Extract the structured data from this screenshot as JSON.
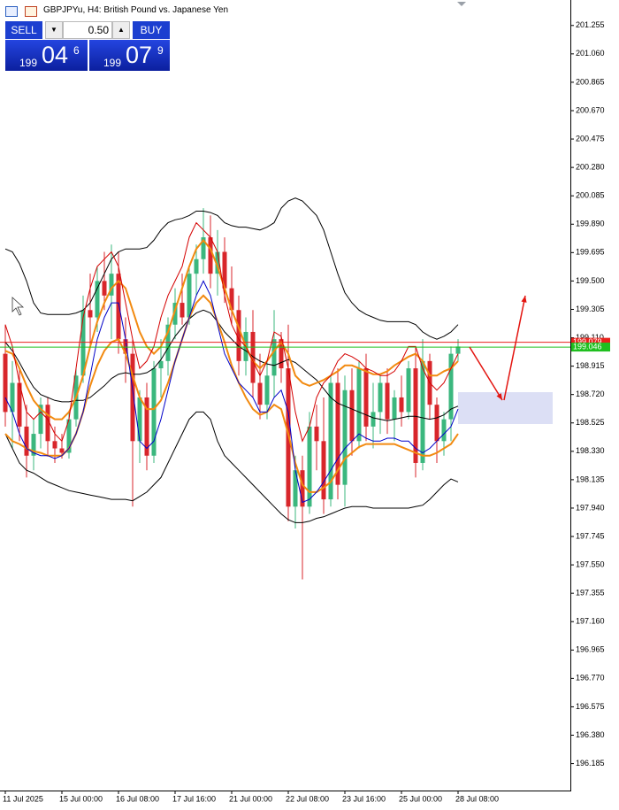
{
  "chart_data": {
    "type": "candlestick",
    "title": "GBPJPYu, H4: British Pound vs. Japanese Yen",
    "categories": [
      "11 Jul 2025",
      null,
      null,
      null,
      null,
      null,
      null,
      null,
      "15 Jul 00:00",
      null,
      null,
      null,
      null,
      null,
      null,
      null,
      "16 Jul 08:00",
      null,
      null,
      null,
      null,
      null,
      null,
      null,
      "17 Jul 16:00",
      null,
      null,
      null,
      null,
      null,
      null,
      null,
      "21 Jul 00:00",
      null,
      null,
      null,
      null,
      null,
      null,
      null,
      "22 Jul 08:00",
      null,
      null,
      null,
      null,
      null,
      null,
      null,
      "23 Jul 16:00",
      null,
      null,
      null,
      null,
      null,
      null,
      null,
      "25 Jul 00:00",
      null,
      null,
      null,
      null,
      null,
      null,
      null,
      "28 Jul 08:00"
    ],
    "open": [
      199.0,
      198.6,
      198.8,
      198.5,
      198.3,
      198.45,
      198.65,
      198.4,
      198.35,
      198.32,
      198.55,
      198.85,
      199.3,
      199.25,
      199.5,
      199.4,
      199.55,
      199.1,
      199.0,
      198.4,
      198.7,
      198.3,
      198.9,
      198.95,
      199.2,
      199.35,
      199.25,
      199.55,
      199.65,
      199.8,
      199.55,
      199.7,
      199.45,
      199.3,
      198.95,
      199.15,
      198.8,
      198.65,
      198.85,
      199.1,
      198.9,
      197.95,
      198.2,
      197.95,
      198.5,
      198.4,
      198.0,
      198.8,
      198.1,
      198.75,
      198.4,
      198.9,
      198.5,
      198.6,
      198.8,
      198.55,
      198.7,
      198.6,
      198.9,
      198.25,
      198.95,
      198.65,
      198.4,
      198.55,
      199.0
    ],
    "high": [
      199.2,
      198.95,
      198.9,
      198.65,
      198.55,
      198.7,
      198.7,
      198.5,
      198.45,
      198.6,
      198.9,
      199.4,
      199.55,
      199.6,
      199.7,
      199.75,
      199.7,
      199.25,
      199.1,
      198.75,
      198.8,
      198.95,
      199.1,
      199.25,
      199.45,
      199.55,
      199.6,
      199.75,
      200.0,
      199.95,
      199.85,
      199.8,
      199.6,
      199.4,
      199.25,
      199.3,
      199.0,
      198.95,
      199.3,
      199.15,
      199.2,
      198.3,
      198.3,
      198.6,
      198.65,
      198.7,
      198.85,
      198.9,
      198.85,
      198.9,
      198.95,
      199.0,
      198.8,
      198.85,
      198.9,
      198.75,
      198.85,
      198.95,
      199.05,
      199.1,
      199.0,
      198.7,
      198.6,
      199.05,
      199.1
    ],
    "low": [
      198.5,
      198.35,
      198.4,
      198.15,
      198.2,
      198.35,
      198.3,
      198.25,
      198.28,
      198.28,
      198.5,
      198.8,
      199.05,
      199.15,
      199.3,
      199.1,
      199.0,
      198.8,
      197.95,
      198.25,
      198.2,
      198.25,
      198.7,
      198.85,
      199.1,
      199.2,
      199.2,
      199.4,
      199.55,
      199.45,
      199.4,
      199.35,
      199.2,
      198.85,
      198.85,
      198.7,
      198.55,
      198.55,
      198.7,
      198.8,
      197.85,
      197.8,
      197.45,
      197.9,
      198.2,
      197.9,
      197.95,
      198.0,
      197.95,
      198.3,
      198.35,
      198.4,
      198.35,
      198.45,
      198.45,
      198.4,
      198.5,
      198.55,
      198.15,
      198.2,
      198.55,
      198.25,
      198.3,
      198.4,
      198.95
    ],
    "close": [
      198.6,
      198.8,
      198.5,
      198.3,
      198.45,
      198.65,
      198.4,
      198.35,
      198.32,
      198.55,
      198.85,
      199.3,
      199.25,
      199.5,
      199.4,
      199.55,
      199.1,
      199.0,
      198.4,
      198.7,
      198.3,
      198.9,
      198.95,
      199.2,
      199.35,
      199.25,
      199.55,
      199.65,
      199.8,
      199.55,
      199.7,
      199.45,
      199.3,
      198.95,
      199.15,
      198.8,
      198.65,
      198.85,
      199.1,
      198.9,
      197.95,
      198.2,
      197.95,
      198.5,
      198.4,
      198.0,
      198.8,
      198.1,
      198.75,
      198.4,
      198.9,
      198.5,
      198.6,
      198.8,
      198.55,
      198.7,
      198.6,
      198.9,
      198.25,
      198.95,
      198.65,
      198.4,
      198.55,
      199.0,
      199.05
    ],
    "up_color": "#3bb77e",
    "down_color": "#d8262b",
    "series": [
      {
        "color": "#000000",
        "width": 1,
        "values": [
          199.72,
          199.7,
          199.62,
          199.5,
          199.35,
          199.28,
          199.27,
          199.27,
          199.27,
          199.27,
          199.28,
          199.3,
          199.35,
          199.45,
          199.55,
          199.65,
          199.7,
          199.72,
          199.72,
          199.72,
          199.73,
          199.78,
          199.85,
          199.9,
          199.92,
          199.93,
          199.95,
          199.98,
          199.98,
          199.97,
          199.95,
          199.9,
          199.88,
          199.87,
          199.87,
          199.86,
          199.85,
          199.87,
          199.9,
          200.0,
          200.05,
          200.07,
          200.05,
          200.0,
          199.95,
          199.85,
          199.7,
          199.55,
          199.42,
          199.35,
          199.3,
          199.27,
          199.25,
          199.23,
          199.22,
          199.22,
          199.22,
          199.22,
          199.2,
          199.15,
          199.12,
          199.1,
          199.12,
          199.15,
          199.2
        ]
      },
      {
        "color": "#000000",
        "width": 1,
        "values": [
          199.08,
          199.02,
          198.94,
          198.85,
          198.77,
          198.72,
          198.7,
          198.68,
          198.67,
          198.67,
          198.68,
          198.68,
          198.7,
          198.74,
          198.78,
          198.83,
          198.86,
          198.87,
          198.86,
          198.86,
          198.87,
          198.9,
          198.96,
          199.04,
          199.12,
          199.18,
          199.24,
          199.28,
          199.3,
          199.28,
          199.22,
          199.15,
          199.1,
          199.05,
          199.02,
          198.98,
          198.95,
          198.93,
          198.92,
          198.94,
          198.96,
          198.94,
          198.9,
          198.86,
          198.82,
          198.76,
          198.7,
          198.66,
          198.64,
          198.62,
          198.6,
          198.58,
          198.56,
          198.55,
          198.54,
          198.55,
          198.56,
          198.57,
          198.57,
          198.56,
          198.55,
          198.56,
          198.58,
          198.62,
          198.64
        ]
      },
      {
        "color": "#000000",
        "width": 1,
        "values": [
          198.45,
          198.35,
          198.25,
          198.2,
          198.18,
          198.15,
          198.12,
          198.1,
          198.08,
          198.06,
          198.05,
          198.04,
          198.03,
          198.02,
          198.01,
          198.0,
          198.0,
          198.0,
          197.99,
          198.02,
          198.05,
          198.1,
          198.15,
          198.25,
          198.35,
          198.45,
          198.55,
          198.6,
          198.6,
          198.55,
          198.4,
          198.3,
          198.25,
          198.2,
          198.15,
          198.1,
          198.05,
          198.0,
          197.95,
          197.9,
          197.86,
          197.84,
          197.84,
          197.85,
          197.87,
          197.88,
          197.9,
          197.92,
          197.94,
          197.95,
          197.95,
          197.95,
          197.94,
          197.94,
          197.94,
          197.94,
          197.94,
          197.94,
          197.95,
          197.96,
          198.0,
          198.05,
          198.1,
          198.14,
          198.12
        ]
      },
      {
        "color": "#f28a10",
        "width": 2,
        "values": [
          199.02,
          199.0,
          198.9,
          198.78,
          198.68,
          198.62,
          198.58,
          198.55,
          198.55,
          198.6,
          198.7,
          198.85,
          199.05,
          199.22,
          199.35,
          199.45,
          199.5,
          199.45,
          199.3,
          199.15,
          199.05,
          199.0,
          199.05,
          199.15,
          199.3,
          199.45,
          199.6,
          199.72,
          199.78,
          199.72,
          199.6,
          199.45,
          199.3,
          199.18,
          199.05,
          198.95,
          198.9,
          198.95,
          199.02,
          199.08,
          199.0,
          198.85,
          198.8,
          198.78,
          198.8,
          198.82,
          198.85,
          198.88,
          198.92,
          198.92,
          198.9,
          198.88,
          198.86,
          198.86,
          198.88,
          198.92,
          198.95,
          198.98,
          199.0,
          198.95,
          198.85,
          198.85,
          198.88,
          198.9,
          198.95
        ]
      },
      {
        "color": "#f28a10",
        "width": 2,
        "values": [
          198.45,
          198.4,
          198.38,
          198.35,
          198.33,
          198.32,
          198.3,
          198.3,
          198.3,
          198.35,
          198.45,
          198.6,
          198.78,
          198.92,
          199.02,
          199.08,
          199.1,
          199.0,
          198.85,
          198.7,
          198.62,
          198.62,
          198.68,
          198.8,
          198.95,
          199.1,
          199.25,
          199.35,
          199.4,
          199.35,
          199.22,
          199.08,
          198.92,
          198.8,
          198.7,
          198.62,
          198.58,
          198.6,
          198.65,
          198.62,
          198.45,
          198.25,
          198.1,
          198.05,
          198.05,
          198.08,
          198.12,
          198.2,
          198.28,
          198.32,
          198.36,
          198.38,
          198.38,
          198.38,
          198.38,
          198.38,
          198.36,
          198.34,
          198.32,
          198.3,
          198.3,
          198.32,
          198.35,
          198.38,
          198.45
        ]
      },
      {
        "color": "#d40000",
        "width": 1,
        "values": [
          199.2,
          199.05,
          198.8,
          198.6,
          198.55,
          198.6,
          198.55,
          198.45,
          198.4,
          198.55,
          198.9,
          199.25,
          199.45,
          199.6,
          199.65,
          199.7,
          199.6,
          199.35,
          199.1,
          198.9,
          198.95,
          199.05,
          199.25,
          199.4,
          199.5,
          199.6,
          199.8,
          199.9,
          199.85,
          199.8,
          199.7,
          199.4,
          199.2,
          199.1,
          199.05,
          198.95,
          198.85,
          198.95,
          199.15,
          199.12,
          198.9,
          198.6,
          198.4,
          198.5,
          198.7,
          198.8,
          198.85,
          198.95,
          199.0,
          198.98,
          198.95,
          198.9,
          198.88,
          198.85,
          198.85,
          198.88,
          198.95,
          199.05,
          199.05,
          198.9,
          198.8,
          198.75,
          198.8,
          198.9,
          199.0
        ]
      },
      {
        "color": "#0000c8",
        "width": 1,
        "values": [
          198.7,
          198.6,
          198.45,
          198.35,
          198.32,
          198.3,
          198.3,
          198.28,
          198.3,
          198.35,
          198.45,
          198.6,
          198.85,
          199.1,
          199.25,
          199.35,
          199.35,
          199.1,
          198.75,
          198.4,
          198.35,
          198.4,
          198.55,
          198.75,
          198.95,
          199.1,
          199.25,
          199.4,
          199.5,
          199.4,
          199.2,
          199.0,
          198.9,
          198.8,
          198.75,
          198.7,
          198.6,
          198.6,
          198.7,
          198.75,
          198.6,
          198.2,
          197.98,
          198.0,
          198.05,
          198.12,
          198.2,
          198.28,
          198.35,
          198.4,
          198.45,
          198.42,
          198.4,
          198.4,
          198.42,
          198.42,
          198.4,
          198.4,
          198.35,
          198.32,
          198.35,
          198.4,
          198.45,
          198.5,
          198.62
        ]
      }
    ],
    "ask": 199.079,
    "ask_color": "#e8211b",
    "bid": 199.046,
    "bid_color": "#1fbf1f",
    "ylim": [
      196.0,
      201.43
    ],
    "yticks": [
      {
        "value": 196.185,
        "label": "196.185"
      },
      {
        "value": 196.38,
        "label": "196.380"
      },
      {
        "value": 196.575,
        "label": "196.575"
      },
      {
        "value": 196.77,
        "label": "196.770"
      },
      {
        "value": 196.965,
        "label": "196.965"
      },
      {
        "value": 197.16,
        "label": "197.160"
      },
      {
        "value": 197.355,
        "label": "197.355"
      },
      {
        "value": 197.55,
        "label": "197.550"
      },
      {
        "value": 197.745,
        "label": "197.745"
      },
      {
        "value": 197.94,
        "label": "197.940"
      },
      {
        "value": 198.135,
        "label": "198.135"
      },
      {
        "value": 198.33,
        "label": "198.330"
      },
      {
        "value": 198.525,
        "label": "198.525"
      },
      {
        "value": 198.72,
        "label": "198.720"
      },
      {
        "value": 198.915,
        "label": "198.915"
      },
      {
        "value": 199.11,
        "label": "199.110"
      },
      {
        "value": 199.305,
        "label": "199.305"
      },
      {
        "value": 199.5,
        "label": "199.500"
      },
      {
        "value": 199.695,
        "label": "199.695"
      },
      {
        "value": 199.89,
        "label": "199.890"
      },
      {
        "value": 200.085,
        "label": "200.085"
      },
      {
        "value": 200.28,
        "label": "200.280"
      },
      {
        "value": 200.475,
        "label": "200.475"
      },
      {
        "value": 200.67,
        "label": "200.670"
      },
      {
        "value": 200.865,
        "label": "200.865"
      },
      {
        "value": 201.06,
        "label": "201.060"
      },
      {
        "value": 201.255,
        "label": "201.255"
      }
    ],
    "grid": false
  },
  "trade_panel": {
    "sell": "SELL",
    "lot": "0.50",
    "buy": "BUY",
    "bid": {
      "big": "199",
      "pips": "04",
      "point": "6"
    },
    "ask": {
      "big": "199",
      "pips": "07",
      "point": "9"
    }
  }
}
